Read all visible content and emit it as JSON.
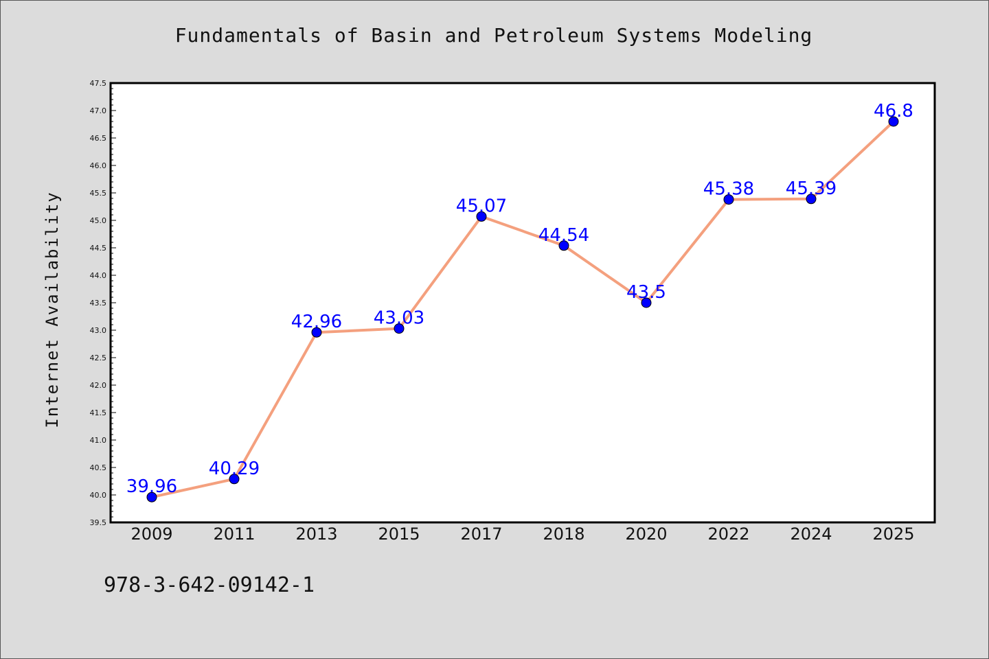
{
  "chart_data": {
    "type": "line",
    "title": "Fundamentals of Basin and Petroleum Systems Modeling",
    "xlabel": "",
    "ylabel": "Internet Availability",
    "categories": [
      "2009",
      "2011",
      "2013",
      "2015",
      "2017",
      "2018",
      "2020",
      "2022",
      "2024",
      "2025"
    ],
    "series": [
      {
        "values": [
          39.96,
          40.29,
          42.96,
          43.03,
          45.07,
          44.54,
          43.5,
          45.38,
          45.39,
          46.8
        ],
        "labels": [
          "39.96",
          "40.29",
          "42.96",
          "43.03",
          "45.07",
          "44.54",
          "43.5",
          "45.38",
          "45.39",
          "46.8"
        ]
      }
    ],
    "ylim": [
      39.5,
      47.5
    ],
    "yticks": [
      "39.5",
      "40.0",
      "40.5",
      "41.0",
      "41.5",
      "42.0",
      "42.5",
      "43.0",
      "43.5",
      "44.0",
      "44.5",
      "45.0",
      "45.5",
      "46.0",
      "46.5",
      "47.0",
      "47.5"
    ],
    "grid": false,
    "legend": "none",
    "colors": {
      "line": "#f4a07e",
      "marker": "#0000ff",
      "label": "#0000ff",
      "background": "#dcdcdc",
      "plot_area": "#ffffff"
    }
  },
  "footer": {
    "isbn": "978-3-642-09142-1"
  }
}
